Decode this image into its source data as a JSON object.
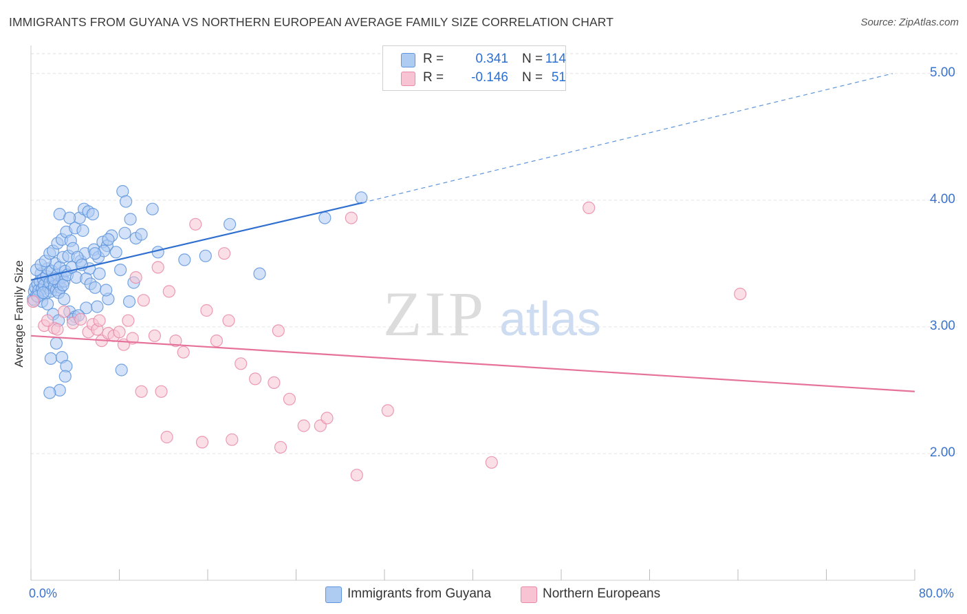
{
  "title": "IMMIGRANTS FROM GUYANA VS NORTHERN EUROPEAN AVERAGE FAMILY SIZE CORRELATION CHART",
  "source": "Source: ZipAtlas.com",
  "watermark": {
    "zip": "ZIP",
    "atlas": "atlas"
  },
  "legend": {
    "r_label": "R =",
    "n_label": "N =",
    "rows": [
      {
        "r": "0.341",
        "n": "114",
        "swatch": "#aecbf2",
        "border": "#5d94dc"
      },
      {
        "r": "-0.146",
        "n": "51",
        "swatch": "#f8c4d3",
        "border": "#e88aa7"
      }
    ]
  },
  "chart_data": {
    "type": "scatter",
    "title": "IMMIGRANTS FROM GUYANA VS NORTHERN EUROPEAN AVERAGE FAMILY SIZE CORRELATION CHART",
    "xlabel": "",
    "ylabel": "Average Family Size",
    "xlim": [
      0,
      80
    ],
    "ylim": [
      1.0,
      5.2
    ],
    "x_tick_labels": [
      "0.0%",
      "80.0%"
    ],
    "y_ticks": [
      2,
      3,
      4,
      5
    ],
    "y_tick_labels": [
      "2.00",
      "3.00",
      "4.00",
      "5.00"
    ],
    "grid": true,
    "legend_position": "top-center",
    "series": [
      {
        "name": "Immigrants from Guyana",
        "color": "#5d94dc",
        "fill": "#aecbf2",
        "r": 0.341,
        "n": 114,
        "trend": {
          "x": [
            0,
            30
          ],
          "y": [
            3.37,
            3.98
          ],
          "dashed_extension_x": [
            30,
            78
          ],
          "dashed_extension_y": [
            3.98,
            5.0
          ]
        },
        "points": [
          [
            0.2,
            3.22
          ],
          [
            0.3,
            3.28
          ],
          [
            0.4,
            3.31
          ],
          [
            0.5,
            3.25
          ],
          [
            0.6,
            3.34
          ],
          [
            0.7,
            3.29
          ],
          [
            0.8,
            3.36
          ],
          [
            0.9,
            3.42
          ],
          [
            1.0,
            3.3
          ],
          [
            1.1,
            3.38
          ],
          [
            1.2,
            3.33
          ],
          [
            1.3,
            3.26
          ],
          [
            1.4,
            3.4
          ],
          [
            1.5,
            3.46
          ],
          [
            1.6,
            3.31
          ],
          [
            1.7,
            3.35
          ],
          [
            1.8,
            3.28
          ],
          [
            1.9,
            3.44
          ],
          [
            2.0,
            3.37
          ],
          [
            2.1,
            3.32
          ],
          [
            2.2,
            3.5
          ],
          [
            2.3,
            3.29
          ],
          [
            2.4,
            3.41
          ],
          [
            2.5,
            3.34
          ],
          [
            2.6,
            3.47
          ],
          [
            2.7,
            3.31
          ],
          [
            2.8,
            3.39
          ],
          [
            2.9,
            3.55
          ],
          [
            3.0,
            3.36
          ],
          [
            3.1,
            3.44
          ],
          [
            0.5,
            3.45
          ],
          [
            0.9,
            3.49
          ],
          [
            1.3,
            3.52
          ],
          [
            1.7,
            3.58
          ],
          [
            2.1,
            3.38
          ],
          [
            2.5,
            3.27
          ],
          [
            2.9,
            3.33
          ],
          [
            3.3,
            3.41
          ],
          [
            3.7,
            3.47
          ],
          [
            4.1,
            3.39
          ],
          [
            4.5,
            3.52
          ],
          [
            4.9,
            3.58
          ],
          [
            5.3,
            3.46
          ],
          [
            5.7,
            3.61
          ],
          [
            6.1,
            3.55
          ],
          [
            6.5,
            3.67
          ],
          [
            6.9,
            3.64
          ],
          [
            7.3,
            3.72
          ],
          [
            7.7,
            3.59
          ],
          [
            8.1,
            3.45
          ],
          [
            2.0,
            3.6
          ],
          [
            2.4,
            3.66
          ],
          [
            2.8,
            3.69
          ],
          [
            3.2,
            3.75
          ],
          [
            3.6,
            3.68
          ],
          [
            4.0,
            3.78
          ],
          [
            4.4,
            3.86
          ],
          [
            4.8,
            3.93
          ],
          [
            5.2,
            3.91
          ],
          [
            5.6,
            3.89
          ],
          [
            3.4,
            3.56
          ],
          [
            3.8,
            3.62
          ],
          [
            4.2,
            3.55
          ],
          [
            4.6,
            3.49
          ],
          [
            5.0,
            3.38
          ],
          [
            5.4,
            3.34
          ],
          [
            5.8,
            3.31
          ],
          [
            6.2,
            3.42
          ],
          [
            6.6,
            3.6
          ],
          [
            7.0,
            3.69
          ],
          [
            2.6,
            3.89
          ],
          [
            3.5,
            3.86
          ],
          [
            4.7,
            3.76
          ],
          [
            8.5,
            3.74
          ],
          [
            9.0,
            3.85
          ],
          [
            9.5,
            3.7
          ],
          [
            10.0,
            3.73
          ],
          [
            11.0,
            3.93
          ],
          [
            8.3,
            4.07
          ],
          [
            8.6,
            3.99
          ],
          [
            1.0,
            3.2
          ],
          [
            1.5,
            3.18
          ],
          [
            2.0,
            3.1
          ],
          [
            2.5,
            3.05
          ],
          [
            3.0,
            3.22
          ],
          [
            3.5,
            3.12
          ],
          [
            4.0,
            3.08
          ],
          [
            5.0,
            3.15
          ],
          [
            6.0,
            3.16
          ],
          [
            7.0,
            3.22
          ],
          [
            1.8,
            2.75
          ],
          [
            2.3,
            2.87
          ],
          [
            2.8,
            2.76
          ],
          [
            3.2,
            2.69
          ],
          [
            3.1,
            2.61
          ],
          [
            2.6,
            2.5
          ],
          [
            1.7,
            2.48
          ],
          [
            8.2,
            2.66
          ],
          [
            3.8,
            3.06
          ],
          [
            4.3,
            3.09
          ],
          [
            5.8,
            3.58
          ],
          [
            6.8,
            3.29
          ],
          [
            8.9,
            3.2
          ],
          [
            9.3,
            3.35
          ],
          [
            11.5,
            3.59
          ],
          [
            13.9,
            3.53
          ],
          [
            15.8,
            3.56
          ],
          [
            18.0,
            3.81
          ],
          [
            20.7,
            3.42
          ],
          [
            26.6,
            3.86
          ],
          [
            29.9,
            4.02
          ],
          [
            0.3,
            3.21
          ],
          [
            0.6,
            3.24
          ],
          [
            1.1,
            3.27
          ]
        ]
      },
      {
        "name": "Northern Europeans",
        "color": "#e88aa7",
        "fill": "#f8c4d3",
        "r": -0.146,
        "n": 51,
        "trend": {
          "x": [
            0,
            80
          ],
          "y": [
            2.93,
            2.49
          ]
        },
        "points": [
          [
            0.2,
            3.2
          ],
          [
            1.2,
            3.01
          ],
          [
            2.1,
            2.99
          ],
          [
            3.0,
            3.12
          ],
          [
            3.8,
            3.03
          ],
          [
            4.5,
            3.06
          ],
          [
            5.2,
            2.96
          ],
          [
            5.6,
            3.02
          ],
          [
            6.0,
            2.98
          ],
          [
            6.4,
            2.89
          ],
          [
            6.2,
            3.05
          ],
          [
            7.0,
            2.95
          ],
          [
            7.5,
            2.93
          ],
          [
            8.0,
            2.96
          ],
          [
            8.4,
            2.86
          ],
          [
            8.8,
            3.05
          ],
          [
            9.2,
            2.91
          ],
          [
            9.5,
            3.39
          ],
          [
            10.2,
            3.21
          ],
          [
            11.2,
            2.93
          ],
          [
            11.5,
            3.47
          ],
          [
            12.5,
            3.28
          ],
          [
            13.1,
            2.89
          ],
          [
            13.8,
            2.8
          ],
          [
            14.9,
            3.81
          ],
          [
            15.9,
            3.13
          ],
          [
            16.8,
            2.89
          ],
          [
            17.5,
            3.58
          ],
          [
            17.9,
            3.05
          ],
          [
            19.0,
            2.71
          ],
          [
            20.3,
            2.59
          ],
          [
            22.0,
            2.56
          ],
          [
            22.4,
            2.97
          ],
          [
            23.4,
            2.43
          ],
          [
            24.7,
            2.22
          ],
          [
            26.2,
            2.22
          ],
          [
            26.8,
            2.28
          ],
          [
            29.0,
            3.86
          ],
          [
            32.3,
            2.34
          ],
          [
            41.7,
            1.93
          ],
          [
            50.5,
            3.94
          ],
          [
            64.2,
            3.26
          ],
          [
            1.5,
            3.05
          ],
          [
            2.4,
            2.98
          ],
          [
            10.0,
            2.49
          ],
          [
            11.8,
            2.49
          ],
          [
            12.3,
            2.13
          ],
          [
            15.5,
            2.09
          ],
          [
            18.2,
            2.11
          ],
          [
            22.6,
            2.05
          ],
          [
            29.5,
            1.83
          ]
        ]
      }
    ]
  },
  "bottom_legend": [
    {
      "label": "Immigrants from Guyana",
      "swatch": "#aecbf2",
      "border": "#5d94dc"
    },
    {
      "label": "Northern Europeans",
      "swatch": "#f8c4d3",
      "border": "#e88aa7"
    }
  ]
}
